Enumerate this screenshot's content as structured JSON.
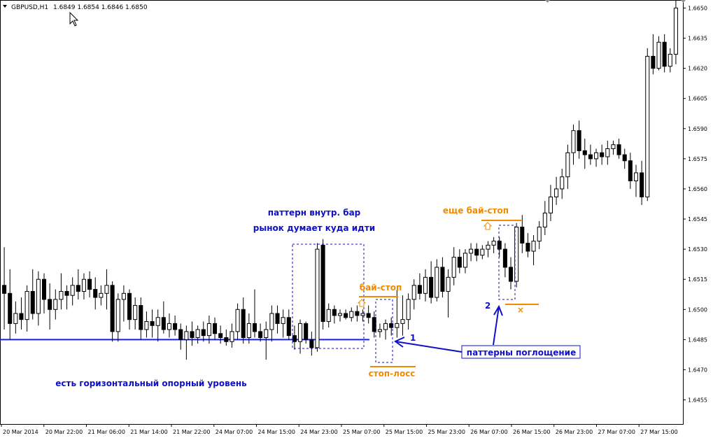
{
  "header": {
    "symbol": "GBPUSD,H1",
    "ohlc": "1.6849 1.6854 1.6846 1.6850"
  },
  "price_axis": {
    "labels": [
      "1.6650",
      "1.6635",
      "1.6620",
      "1.6605",
      "1.6590",
      "1.6575",
      "1.6560",
      "1.6545",
      "1.6530",
      "1.6515",
      "1.6500",
      "1.6485",
      "1.6470",
      "1.6455"
    ]
  },
  "time_axis": {
    "labels": [
      "20 Mar 2014",
      "20 Mar 22:00",
      "21 Mar 06:00",
      "21 Mar 14:00",
      "21 Mar 22:00",
      "24 Mar 07:00",
      "24 Mar 15:00",
      "24 Mar 23:00",
      "25 Mar 07:00",
      "25 Mar 15:00",
      "25 Mar 23:00",
      "26 Mar 07:00",
      "26 Mar 15:00",
      "26 Mar 23:00",
      "27 Mar 07:00",
      "27 Mar 15:00"
    ]
  },
  "annotations": {
    "inside_bar_title": "паттерн внутр. бар",
    "inside_bar_subtitle": "рынок думает куда идти",
    "buy_stop_1": "бай-стоп",
    "stop_loss": "стоп-лосс",
    "buy_stop_2": "еще бай-стоп",
    "horizontal_level": "есть горизонтальный опорный уровень",
    "engulfing_patterns": "паттерны поглощение",
    "marker_1": "1",
    "marker_2": "2",
    "cross_mark": "×"
  },
  "colors": {
    "annotation_blue": "#1010c8",
    "annotation_orange": "#f08a00",
    "bull_candle": "#ffffff",
    "bear_candle": "#000000",
    "support_line": "#1a1aff"
  },
  "chart_data": {
    "type": "candlestick",
    "y_range": [
      1.6443,
      1.6654
    ],
    "y_ticks": [
      1.665,
      1.6635,
      1.662,
      1.6605,
      1.659,
      1.6575,
      1.656,
      1.6545,
      1.653,
      1.6515,
      1.65,
      1.6485,
      1.647,
      1.6455
    ],
    "support_level": 1.6485,
    "candles": [
      {
        "o": 1.6512,
        "h": 1.6531,
        "l": 1.649,
        "c": 1.6508
      },
      {
        "o": 1.6508,
        "h": 1.652,
        "l": 1.6485,
        "c": 1.6493
      },
      {
        "o": 1.6493,
        "h": 1.6504,
        "l": 1.6488,
        "c": 1.6498
      },
      {
        "o": 1.6498,
        "h": 1.6506,
        "l": 1.649,
        "c": 1.6495
      },
      {
        "o": 1.6495,
        "h": 1.6512,
        "l": 1.6489,
        "c": 1.6509
      },
      {
        "o": 1.6509,
        "h": 1.652,
        "l": 1.6495,
        "c": 1.6498
      },
      {
        "o": 1.6498,
        "h": 1.6519,
        "l": 1.6492,
        "c": 1.6515
      },
      {
        "o": 1.6515,
        "h": 1.6518,
        "l": 1.6498,
        "c": 1.6505
      },
      {
        "o": 1.6505,
        "h": 1.6513,
        "l": 1.649,
        "c": 1.65
      },
      {
        "o": 1.65,
        "h": 1.651,
        "l": 1.6495,
        "c": 1.6505
      },
      {
        "o": 1.6505,
        "h": 1.6518,
        "l": 1.65,
        "c": 1.6509
      },
      {
        "o": 1.6509,
        "h": 1.6512,
        "l": 1.65,
        "c": 1.6507
      },
      {
        "o": 1.6507,
        "h": 1.6516,
        "l": 1.6502,
        "c": 1.6512
      },
      {
        "o": 1.6512,
        "h": 1.652,
        "l": 1.6505,
        "c": 1.6509
      },
      {
        "o": 1.6509,
        "h": 1.6518,
        "l": 1.6505,
        "c": 1.6515
      },
      {
        "o": 1.6515,
        "h": 1.6519,
        "l": 1.6506,
        "c": 1.651
      },
      {
        "o": 1.651,
        "h": 1.6516,
        "l": 1.65,
        "c": 1.6506
      },
      {
        "o": 1.6506,
        "h": 1.6512,
        "l": 1.6502,
        "c": 1.6508
      },
      {
        "o": 1.6508,
        "h": 1.652,
        "l": 1.65,
        "c": 1.6512
      },
      {
        "o": 1.6512,
        "h": 1.6514,
        "l": 1.6484,
        "c": 1.6489
      },
      {
        "o": 1.6489,
        "h": 1.6508,
        "l": 1.6484,
        "c": 1.6505
      },
      {
        "o": 1.6505,
        "h": 1.6512,
        "l": 1.6494,
        "c": 1.6508
      },
      {
        "o": 1.6508,
        "h": 1.651,
        "l": 1.649,
        "c": 1.6495
      },
      {
        "o": 1.6495,
        "h": 1.6506,
        "l": 1.649,
        "c": 1.6502
      },
      {
        "o": 1.6502,
        "h": 1.6506,
        "l": 1.6485,
        "c": 1.649
      },
      {
        "o": 1.649,
        "h": 1.6499,
        "l": 1.6486,
        "c": 1.6494
      },
      {
        "o": 1.6494,
        "h": 1.65,
        "l": 1.6486,
        "c": 1.6492
      },
      {
        "o": 1.6492,
        "h": 1.65,
        "l": 1.6484,
        "c": 1.6496
      },
      {
        "o": 1.6496,
        "h": 1.6504,
        "l": 1.6488,
        "c": 1.649
      },
      {
        "o": 1.649,
        "h": 1.6498,
        "l": 1.6486,
        "c": 1.6493
      },
      {
        "o": 1.6493,
        "h": 1.6497,
        "l": 1.6487,
        "c": 1.649
      },
      {
        "o": 1.649,
        "h": 1.6493,
        "l": 1.648,
        "c": 1.6485
      },
      {
        "o": 1.6485,
        "h": 1.6492,
        "l": 1.6475,
        "c": 1.6489
      },
      {
        "o": 1.6489,
        "h": 1.6494,
        "l": 1.6482,
        "c": 1.6486
      },
      {
        "o": 1.6486,
        "h": 1.6492,
        "l": 1.6483,
        "c": 1.649
      },
      {
        "o": 1.649,
        "h": 1.6494,
        "l": 1.6484,
        "c": 1.6487
      },
      {
        "o": 1.6487,
        "h": 1.6497,
        "l": 1.6483,
        "c": 1.6493
      },
      {
        "o": 1.6493,
        "h": 1.6496,
        "l": 1.6485,
        "c": 1.6488
      },
      {
        "o": 1.6488,
        "h": 1.6492,
        "l": 1.6483,
        "c": 1.6486
      },
      {
        "o": 1.6486,
        "h": 1.649,
        "l": 1.6482,
        "c": 1.6484
      },
      {
        "o": 1.6484,
        "h": 1.6493,
        "l": 1.6481,
        "c": 1.6489
      },
      {
        "o": 1.6489,
        "h": 1.6503,
        "l": 1.6485,
        "c": 1.65
      },
      {
        "o": 1.65,
        "h": 1.6506,
        "l": 1.6483,
        "c": 1.6486
      },
      {
        "o": 1.6486,
        "h": 1.6498,
        "l": 1.6483,
        "c": 1.6493
      },
      {
        "o": 1.6493,
        "h": 1.651,
        "l": 1.6486,
        "c": 1.6489
      },
      {
        "o": 1.6489,
        "h": 1.6493,
        "l": 1.6484,
        "c": 1.6486
      },
      {
        "o": 1.6486,
        "h": 1.6494,
        "l": 1.6475,
        "c": 1.649
      },
      {
        "o": 1.649,
        "h": 1.6502,
        "l": 1.6484,
        "c": 1.6498
      },
      {
        "o": 1.6498,
        "h": 1.6502,
        "l": 1.6488,
        "c": 1.6493
      },
      {
        "o": 1.6493,
        "h": 1.65,
        "l": 1.6486,
        "c": 1.6496
      },
      {
        "o": 1.6496,
        "h": 1.65,
        "l": 1.6485,
        "c": 1.6487
      },
      {
        "o": 1.6487,
        "h": 1.6492,
        "l": 1.648,
        "c": 1.6484
      },
      {
        "o": 1.6484,
        "h": 1.6495,
        "l": 1.6478,
        "c": 1.6493
      },
      {
        "o": 1.6493,
        "h": 1.6494,
        "l": 1.6483,
        "c": 1.6485
      },
      {
        "o": 1.6485,
        "h": 1.6489,
        "l": 1.6477,
        "c": 1.6481
      },
      {
        "o": 1.6481,
        "h": 1.6533,
        "l": 1.6479,
        "c": 1.653
      },
      {
        "o": 1.6532,
        "h": 1.6535,
        "l": 1.649,
        "c": 1.6494
      },
      {
        "o": 1.6494,
        "h": 1.6503,
        "l": 1.6491,
        "c": 1.65
      },
      {
        "o": 1.65,
        "h": 1.6502,
        "l": 1.6493,
        "c": 1.6497
      },
      {
        "o": 1.6497,
        "h": 1.65,
        "l": 1.6494,
        "c": 1.6498
      },
      {
        "o": 1.6498,
        "h": 1.65,
        "l": 1.6495,
        "c": 1.6496
      },
      {
        "o": 1.6496,
        "h": 1.6501,
        "l": 1.6494,
        "c": 1.6499
      },
      {
        "o": 1.6499,
        "h": 1.6502,
        "l": 1.6494,
        "c": 1.6497
      },
      {
        "o": 1.6497,
        "h": 1.65,
        "l": 1.6494,
        "c": 1.6498
      },
      {
        "o": 1.6498,
        "h": 1.6502,
        "l": 1.6493,
        "c": 1.6496
      },
      {
        "o": 1.6496,
        "h": 1.6499,
        "l": 1.6486,
        "c": 1.6489
      },
      {
        "o": 1.6489,
        "h": 1.6493,
        "l": 1.6486,
        "c": 1.649
      },
      {
        "o": 1.649,
        "h": 1.6495,
        "l": 1.6485,
        "c": 1.6493
      },
      {
        "o": 1.6493,
        "h": 1.6496,
        "l": 1.6487,
        "c": 1.6491
      },
      {
        "o": 1.6491,
        "h": 1.651,
        "l": 1.6486,
        "c": 1.6493
      },
      {
        "o": 1.6493,
        "h": 1.6507,
        "l": 1.6487,
        "c": 1.6495
      },
      {
        "o": 1.6495,
        "h": 1.6508,
        "l": 1.649,
        "c": 1.6505
      },
      {
        "o": 1.6505,
        "h": 1.6515,
        "l": 1.65,
        "c": 1.6512
      },
      {
        "o": 1.6512,
        "h": 1.6518,
        "l": 1.6505,
        "c": 1.6508
      },
      {
        "o": 1.6508,
        "h": 1.652,
        "l": 1.6504,
        "c": 1.6516
      },
      {
        "o": 1.6516,
        "h": 1.6524,
        "l": 1.6503,
        "c": 1.6506
      },
      {
        "o": 1.6506,
        "h": 1.6525,
        "l": 1.6504,
        "c": 1.6521
      },
      {
        "o": 1.6521,
        "h": 1.6526,
        "l": 1.6506,
        "c": 1.6509
      },
      {
        "o": 1.6509,
        "h": 1.652,
        "l": 1.6496,
        "c": 1.6516
      },
      {
        "o": 1.6516,
        "h": 1.6531,
        "l": 1.6512,
        "c": 1.6526
      },
      {
        "o": 1.6526,
        "h": 1.653,
        "l": 1.6518,
        "c": 1.6521
      },
      {
        "o": 1.6521,
        "h": 1.653,
        "l": 1.6518,
        "c": 1.6528
      },
      {
        "o": 1.6528,
        "h": 1.6533,
        "l": 1.6524,
        "c": 1.653
      },
      {
        "o": 1.653,
        "h": 1.6533,
        "l": 1.6524,
        "c": 1.6527
      },
      {
        "o": 1.6527,
        "h": 1.6532,
        "l": 1.6525,
        "c": 1.653
      },
      {
        "o": 1.653,
        "h": 1.6534,
        "l": 1.6526,
        "c": 1.6532
      },
      {
        "o": 1.6532,
        "h": 1.6536,
        "l": 1.6528,
        "c": 1.6534
      },
      {
        "o": 1.6534,
        "h": 1.6536,
        "l": 1.6526,
        "c": 1.653
      },
      {
        "o": 1.653,
        "h": 1.6533,
        "l": 1.6516,
        "c": 1.6521
      },
      {
        "o": 1.6521,
        "h": 1.6526,
        "l": 1.651,
        "c": 1.6514
      },
      {
        "o": 1.6514,
        "h": 1.6543,
        "l": 1.6511,
        "c": 1.6541
      },
      {
        "o": 1.6541,
        "h": 1.6547,
        "l": 1.6528,
        "c": 1.6533
      },
      {
        "o": 1.6533,
        "h": 1.6538,
        "l": 1.6526,
        "c": 1.6529
      },
      {
        "o": 1.6529,
        "h": 1.6537,
        "l": 1.6522,
        "c": 1.6534
      },
      {
        "o": 1.6534,
        "h": 1.6544,
        "l": 1.653,
        "c": 1.6541
      },
      {
        "o": 1.6541,
        "h": 1.6554,
        "l": 1.6537,
        "c": 1.6548
      },
      {
        "o": 1.6548,
        "h": 1.6562,
        "l": 1.6544,
        "c": 1.6556
      },
      {
        "o": 1.6556,
        "h": 1.6566,
        "l": 1.6552,
        "c": 1.656
      },
      {
        "o": 1.656,
        "h": 1.657,
        "l": 1.6555,
        "c": 1.6566
      },
      {
        "o": 1.6566,
        "h": 1.6582,
        "l": 1.656,
        "c": 1.6578
      },
      {
        "o": 1.6578,
        "h": 1.6592,
        "l": 1.6572,
        "c": 1.6589
      },
      {
        "o": 1.6589,
        "h": 1.6594,
        "l": 1.6575,
        "c": 1.6579
      },
      {
        "o": 1.6579,
        "h": 1.6585,
        "l": 1.657,
        "c": 1.6577
      },
      {
        "o": 1.6577,
        "h": 1.6582,
        "l": 1.6572,
        "c": 1.6575
      },
      {
        "o": 1.6575,
        "h": 1.658,
        "l": 1.6571,
        "c": 1.6578
      },
      {
        "o": 1.6578,
        "h": 1.6582,
        "l": 1.6572,
        "c": 1.6576
      },
      {
        "o": 1.6576,
        "h": 1.6584,
        "l": 1.6572,
        "c": 1.658
      },
      {
        "o": 1.658,
        "h": 1.6584,
        "l": 1.6577,
        "c": 1.6582
      },
      {
        "o": 1.6582,
        "h": 1.6585,
        "l": 1.6575,
        "c": 1.6577
      },
      {
        "o": 1.6577,
        "h": 1.658,
        "l": 1.657,
        "c": 1.6574
      },
      {
        "o": 1.6574,
        "h": 1.6578,
        "l": 1.656,
        "c": 1.6564
      },
      {
        "o": 1.6564,
        "h": 1.6572,
        "l": 1.6556,
        "c": 1.6568
      },
      {
        "o": 1.6568,
        "h": 1.6574,
        "l": 1.6552,
        "c": 1.6556
      },
      {
        "o": 1.6556,
        "h": 1.663,
        "l": 1.6554,
        "c": 1.6626
      },
      {
        "o": 1.6626,
        "h": 1.6637,
        "l": 1.6617,
        "c": 1.662
      },
      {
        "o": 1.662,
        "h": 1.6636,
        "l": 1.6619,
        "c": 1.6633
      },
      {
        "o": 1.6633,
        "h": 1.6637,
        "l": 1.6618,
        "c": 1.6621
      },
      {
        "o": 1.6621,
        "h": 1.663,
        "l": 1.6618,
        "c": 1.6627
      },
      {
        "o": 1.6627,
        "h": 1.6654,
        "l": 1.6622,
        "c": 1.665
      }
    ]
  }
}
